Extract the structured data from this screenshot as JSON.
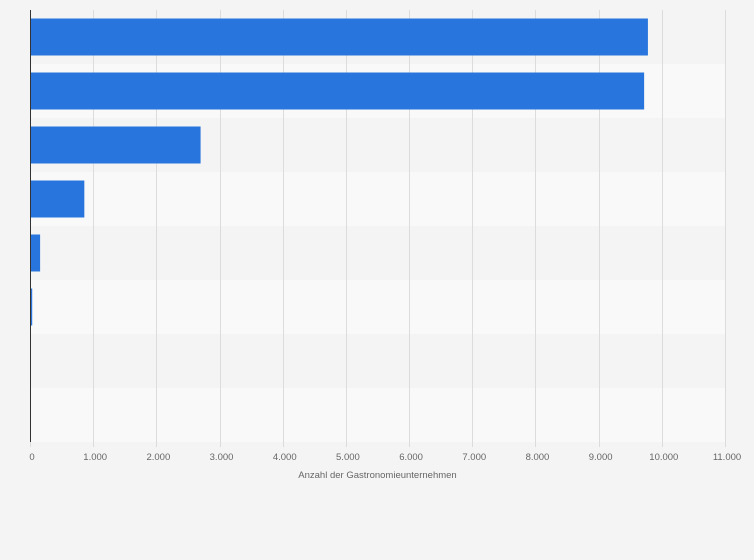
{
  "chart_data": {
    "type": "bar",
    "orientation": "horizontal",
    "categories": [
      "",
      "",
      "",
      "",
      "",
      "",
      "",
      ""
    ],
    "values": [
      9780,
      9720,
      2700,
      860,
      160,
      35,
      0,
      0
    ],
    "title": "",
    "xlabel": "Anzahl der Gastronomieunternehmen",
    "ylabel": "",
    "xlim": [
      0,
      11000
    ],
    "x_ticks": [
      {
        "value": 0,
        "label": "0"
      },
      {
        "value": 1000,
        "label": "1.000"
      },
      {
        "value": 2000,
        "label": "2.000"
      },
      {
        "value": 3000,
        "label": "3.000"
      },
      {
        "value": 4000,
        "label": "4.000"
      },
      {
        "value": 5000,
        "label": "5.000"
      },
      {
        "value": 6000,
        "label": "6.000"
      },
      {
        "value": 7000,
        "label": "7.000"
      },
      {
        "value": 8000,
        "label": "8.000"
      },
      {
        "value": 9000,
        "label": "9.000"
      },
      {
        "value": 10000,
        "label": "10.000"
      },
      {
        "value": 11000,
        "label": "11.000"
      }
    ],
    "grid": true,
    "legend": "none",
    "bar_color": "#2876dd",
    "band_colors": [
      "#f4f4f4",
      "#f9f9f9"
    ],
    "grid_color": "#dcdcdc",
    "axis_color": "#333333"
  }
}
